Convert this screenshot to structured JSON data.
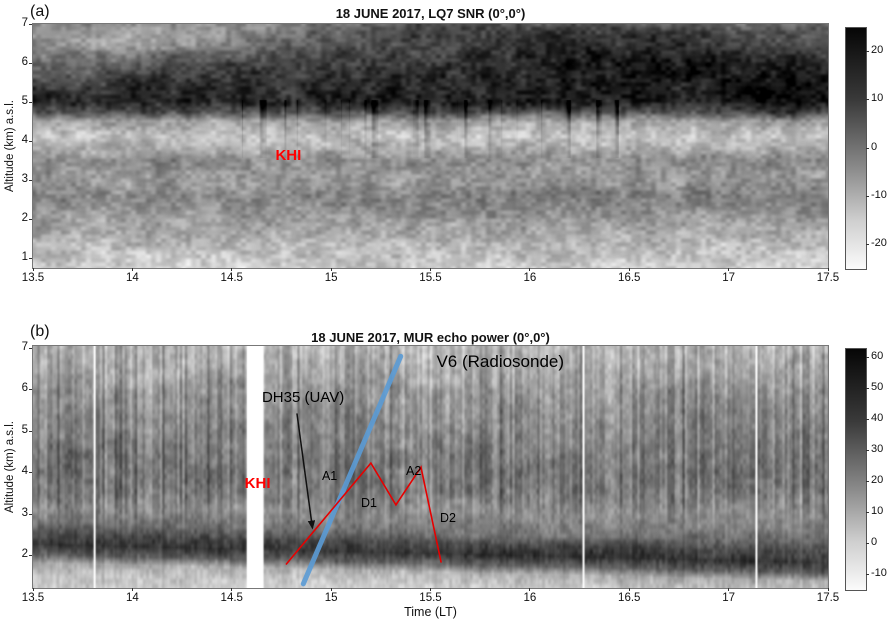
{
  "panels": {
    "a": {
      "letter": "(a)",
      "title": "18 JUNE 2017, LQ7 SNR (0°,0°)",
      "ylabel": "Altitude (km) a.s.l."
    },
    "b": {
      "letter": "(b)",
      "title": "18 JUNE 2017, MUR echo power (0°,0°)",
      "ylabel": "Altitude (km) a.s.l.",
      "xlabel": "Time (LT)"
    }
  },
  "chart_data": [
    {
      "type": "heatmap",
      "panel": "a",
      "title": "18 JUNE 2017, LQ7 SNR (0°,0°)",
      "xlim": [
        13.5,
        17.5
      ],
      "xticks": [
        13.5,
        14,
        14.5,
        15,
        15.5,
        16,
        16.5,
        17,
        17.5
      ],
      "ylim": [
        0.74,
        7.0
      ],
      "yticks": [
        1,
        2,
        3,
        4,
        5,
        6,
        7
      ],
      "colorbar": {
        "min": -25,
        "max": 25,
        "ticks": [
          20,
          10,
          0,
          -10,
          -20
        ],
        "dark_is_high": true
      },
      "annotations": [
        {
          "text": "KHI",
          "t": 14.72,
          "alt": 3.82,
          "color": "#ff0000",
          "size": 15,
          "bold": true
        }
      ],
      "texture": {
        "seed": 7,
        "noise_amp": 52,
        "octaves": [
          [
            5,
            4,
            0.45
          ],
          [
            14,
            10,
            0.35
          ],
          [
            42,
            24,
            0.2
          ]
        ],
        "bands": [
          [
            7.0,
            115
          ],
          [
            6.5,
            95
          ],
          [
            6.1,
            72
          ],
          [
            5.7,
            50
          ],
          [
            5.0,
            42
          ],
          [
            4.75,
            80
          ],
          [
            4.5,
            165
          ],
          [
            4.1,
            195
          ],
          [
            3.8,
            172
          ],
          [
            3.5,
            138
          ],
          [
            3.2,
            148
          ],
          [
            2.9,
            150
          ],
          [
            2.6,
            128
          ],
          [
            2.3,
            138
          ],
          [
            2.0,
            155
          ],
          [
            1.7,
            168
          ],
          [
            1.4,
            180
          ],
          [
            1.1,
            192
          ],
          [
            0.74,
            205
          ]
        ],
        "patches": [
          [
            13.95,
            6.6,
            0.55,
            0.5,
            60
          ],
          [
            14.6,
            6.95,
            0.5,
            0.3,
            40
          ],
          [
            16.45,
            6.35,
            0.95,
            0.8,
            -50
          ],
          [
            15.35,
            6.9,
            0.8,
            0.35,
            -30
          ],
          [
            17.3,
            5.1,
            0.45,
            0.7,
            -25
          ],
          [
            13.7,
            5.8,
            0.35,
            0.5,
            35
          ]
        ],
        "streaks": {
          "alt_range": [
            3.55,
            5.05
          ],
          "t_range": [
            14.55,
            16.45
          ],
          "scale": 4,
          "threshold": 0.58,
          "strength": 260
        }
      }
    },
    {
      "type": "heatmap",
      "panel": "b",
      "title": "18 JUNE 2017, MUR echo power (0°,0°)",
      "xlabel": "Time (LT)",
      "xlim": [
        13.5,
        17.5
      ],
      "xticks": [
        13.5,
        14,
        14.5,
        15,
        15.5,
        16,
        16.5,
        17,
        17.5
      ],
      "ylim": [
        1.2,
        7.05
      ],
      "yticks": [
        2,
        3,
        4,
        5,
        6,
        7
      ],
      "colorbar": {
        "min": -15,
        "max": 63,
        "ticks": [
          60,
          50,
          40,
          30,
          20,
          10,
          0,
          -10
        ],
        "dark_is_high": true
      },
      "data_gaps_LT": {
        "wide": [
          14.575,
          14.66
        ],
        "thin": [
          13.81,
          16.27,
          17.14
        ]
      },
      "annotations": [
        {
          "text": "KHI",
          "t": 14.565,
          "alt": 3.91,
          "color": "#ff0000",
          "size": 15,
          "bold": true
        },
        {
          "text": "DH35 (UAV)",
          "t": 14.652,
          "alt": 5.99,
          "color": "#000000",
          "size": 15,
          "bold": false
        },
        {
          "text": "V6 (Radiosonde)",
          "t": 15.53,
          "alt": 6.88,
          "color": "#000000",
          "size": 17,
          "bold": false
        },
        {
          "text": "A1",
          "t": 14.954,
          "alt": 4.05,
          "color": "#000000",
          "size": 12.5,
          "bold": false
        },
        {
          "text": "D1",
          "t": 15.15,
          "alt": 3.4,
          "color": "#000000",
          "size": 12.5,
          "bold": false
        },
        {
          "text": "A2",
          "t": 15.377,
          "alt": 4.17,
          "color": "#000000",
          "size": 12.5,
          "bold": false
        },
        {
          "text": "D2",
          "t": 15.548,
          "alt": 3.04,
          "color": "#000000",
          "size": 12.5,
          "bold": false
        }
      ],
      "lines": [
        {
          "name": "radiosonde-v6-track-line",
          "color": "#5b9bd5",
          "width": 5,
          "opacity": 0.9,
          "points": [
            [
              14.86,
              1.3
            ],
            [
              15.35,
              6.8
            ]
          ]
        },
        {
          "name": "uav-dh35-flightpath-line",
          "color": "#e60000",
          "width": 1.6,
          "opacity": 1,
          "points": [
            [
              14.775,
              1.78
            ],
            [
              15.2,
              4.22
            ],
            [
              15.326,
              3.21
            ],
            [
              15.452,
              4.12
            ],
            [
              15.553,
              1.83
            ]
          ]
        }
      ],
      "arrow": {
        "from": [
          14.828,
          5.42
        ],
        "to": [
          14.906,
          2.65
        ],
        "color": "#111111",
        "width": 1.5
      },
      "texture": {
        "seed": 13,
        "noise_amp": 38,
        "octaves": [
          [
            3,
            5,
            0.4
          ],
          [
            9,
            9,
            0.35
          ],
          [
            28,
            16,
            0.25
          ]
        ],
        "bands": [
          [
            7.05,
            178
          ],
          [
            6.5,
            168
          ],
          [
            6.0,
            152
          ],
          [
            5.5,
            140
          ],
          [
            5.0,
            130
          ],
          [
            4.5,
            122
          ],
          [
            4.0,
            115
          ],
          [
            3.5,
            120
          ],
          [
            3.1,
            138
          ],
          [
            2.75,
            112
          ],
          [
            2.5,
            70
          ],
          [
            2.25,
            52
          ],
          [
            2.0,
            95
          ],
          [
            1.8,
            170
          ],
          [
            1.5,
            198
          ],
          [
            1.2,
            208
          ]
        ],
        "lower_tilt_km": 0.45,
        "striation": {
          "scale": 2.5,
          "amp": 42,
          "alt_range": [
            3.3,
            7.05
          ]
        }
      }
    }
  ]
}
